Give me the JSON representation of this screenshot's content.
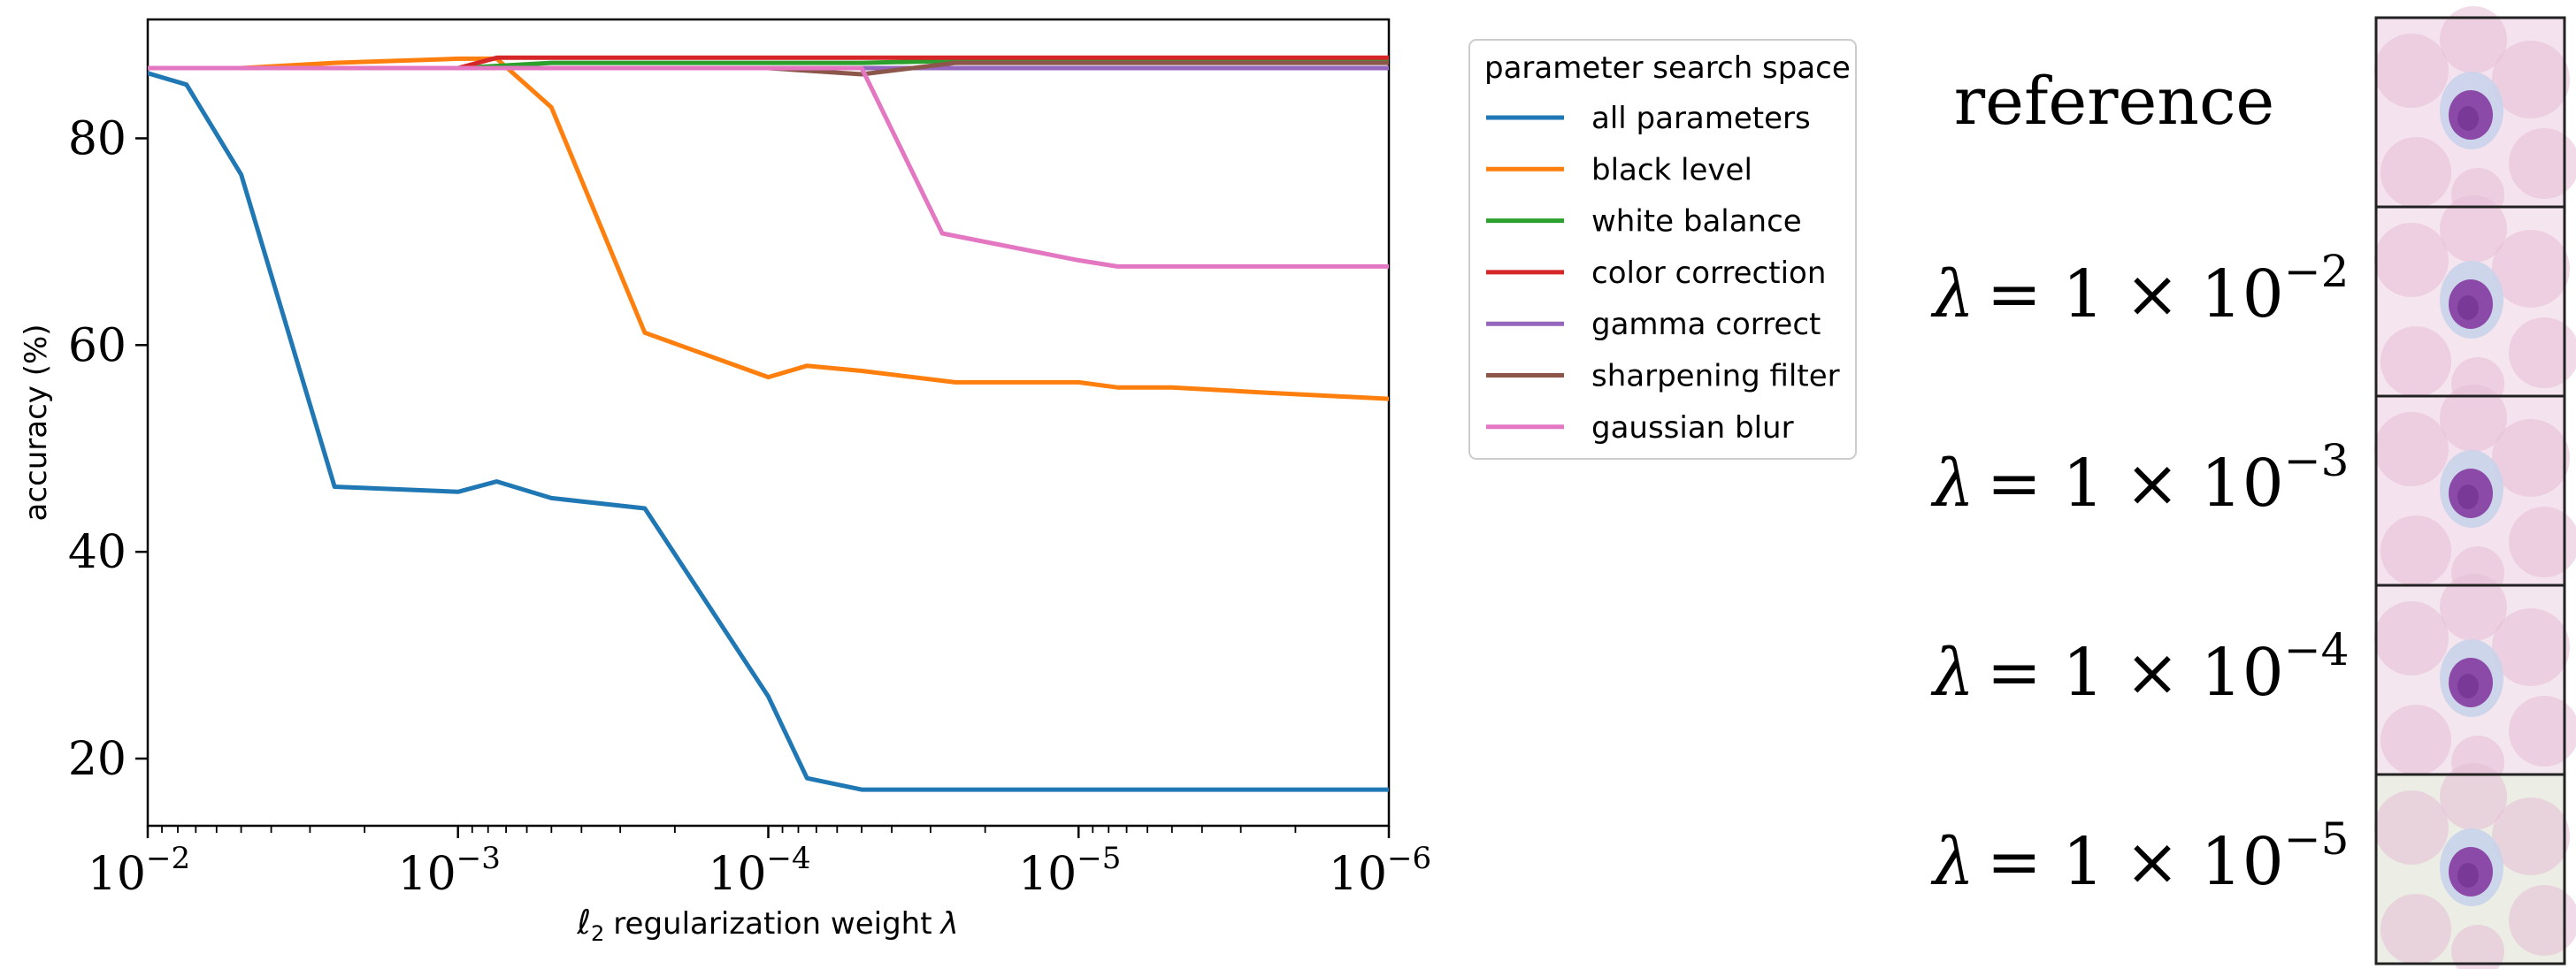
{
  "chart_data": {
    "type": "line",
    "xscale": "log",
    "x_reversed": true,
    "xlim": [
      0.01,
      1e-06
    ],
    "ylim": [
      13.5,
      91.5
    ],
    "xlabel_main": "regularization weight",
    "xlabel_prefix": "ℓ",
    "xlabel_sub": "2",
    "xlabel_symbol": "λ",
    "ylabel": "accuracy (%)",
    "x_ticks": [
      {
        "value": 0.01,
        "exponent": "−2"
      },
      {
        "value": 0.001,
        "exponent": "−3"
      },
      {
        "value": 0.0001,
        "exponent": "−4"
      },
      {
        "value": 1e-05,
        "exponent": "−5"
      },
      {
        "value": 1e-06,
        "exponent": "−6"
      }
    ],
    "tick_base": "10",
    "y_ticks": [
      "20",
      "40",
      "60",
      "80"
    ],
    "grid": false,
    "legend": {
      "title": "parameter search space",
      "placement": "outside-right"
    },
    "series": [
      {
        "name": "all parameters",
        "color": "#1f77b4",
        "points": [
          [
            0.01,
            86.3
          ],
          [
            0.0075,
            85.2
          ],
          [
            0.005,
            76.5
          ],
          [
            0.0025,
            46.3
          ],
          [
            0.001,
            45.8
          ],
          [
            0.00075,
            46.8
          ],
          [
            0.0005,
            45.2
          ],
          [
            0.00025,
            44.2
          ],
          [
            0.0001,
            26.0
          ],
          [
            7.5e-05,
            18.1
          ],
          [
            5e-05,
            17.0
          ],
          [
            1e-06,
            17.0
          ]
        ]
      },
      {
        "name": "black level",
        "color": "#ff7f0e",
        "points": [
          [
            0.01,
            86.8
          ],
          [
            0.005,
            86.8
          ],
          [
            0.0025,
            87.3
          ],
          [
            0.001,
            87.7
          ],
          [
            0.00075,
            87.7
          ],
          [
            0.0005,
            83.0
          ],
          [
            0.00025,
            61.2
          ],
          [
            0.0001,
            56.9
          ],
          [
            7.5e-05,
            58.0
          ],
          [
            5e-05,
            57.5
          ],
          [
            2.5e-05,
            56.4
          ],
          [
            1e-05,
            56.4
          ],
          [
            7.5e-06,
            55.9
          ],
          [
            5e-06,
            55.9
          ],
          [
            2.5e-06,
            55.4
          ],
          [
            1e-06,
            54.8
          ]
        ]
      },
      {
        "name": "white balance",
        "color": "#2ca02c",
        "points": [
          [
            0.01,
            86.8
          ],
          [
            0.001,
            86.8
          ],
          [
            0.0005,
            87.3
          ],
          [
            5e-05,
            87.3
          ],
          [
            2.5e-05,
            87.5
          ],
          [
            1e-06,
            87.5
          ]
        ]
      },
      {
        "name": "color correction",
        "color": "#d62728",
        "points": [
          [
            0.01,
            86.8
          ],
          [
            0.001,
            86.8
          ],
          [
            0.00075,
            87.8
          ],
          [
            1e-06,
            87.8
          ]
        ]
      },
      {
        "name": "gamma correct",
        "color": "#9467bd",
        "points": [
          [
            0.01,
            86.8
          ],
          [
            1e-06,
            86.8
          ]
        ]
      },
      {
        "name": "sharpening filter",
        "color": "#8c564b",
        "points": [
          [
            0.01,
            86.8
          ],
          [
            0.0001,
            86.8
          ],
          [
            5e-05,
            86.2
          ],
          [
            2.5e-05,
            87.3
          ],
          [
            1e-06,
            87.3
          ]
        ]
      },
      {
        "name": "gaussian blur",
        "color": "#e377c2",
        "points": [
          [
            0.01,
            86.8
          ],
          [
            5e-05,
            86.8
          ],
          [
            2.75e-05,
            70.8
          ],
          [
            1e-05,
            68.2
          ],
          [
            7.5e-06,
            67.6
          ],
          [
            1e-06,
            67.6
          ]
        ]
      }
    ]
  },
  "panel": {
    "reference_label": "reference",
    "lambda_symbol": "λ",
    "lambda_mid": "= 1 × 10",
    "lambda_exponents": [
      "−2",
      "−3",
      "−4",
      "−5"
    ],
    "tile_colors": {
      "background": "#f3e4ee",
      "rbc": "#e5bdd6",
      "cytoplasm": "#c9d3ea",
      "nucleus": "#8c4aa8",
      "nucleus_dark": "#6d2f8b"
    }
  }
}
